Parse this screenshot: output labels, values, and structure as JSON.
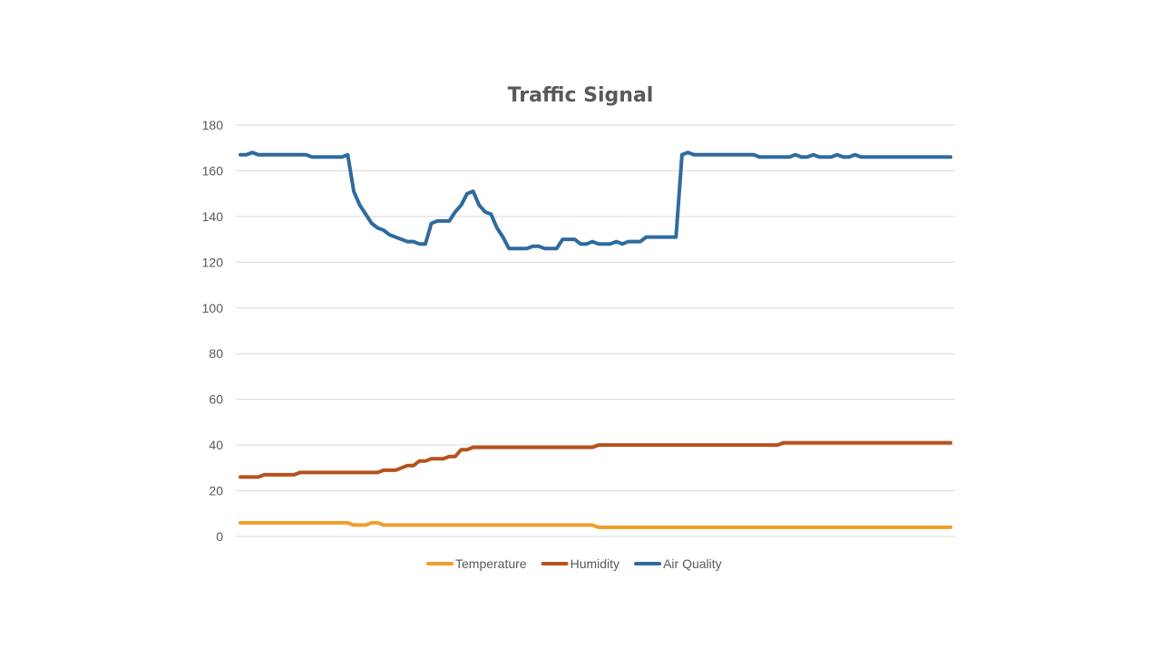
{
  "chart_data": {
    "type": "line",
    "title": "Traffic Signal",
    "xlabel": "",
    "ylabel": "",
    "ylim": [
      0,
      180
    ],
    "yticks": [
      0,
      20,
      40,
      60,
      80,
      100,
      120,
      140,
      160,
      180
    ],
    "grid": true,
    "legend_position": "bottom",
    "series": [
      {
        "name": "Temperature",
        "color": "#ed9f2b",
        "values": [
          6,
          6,
          6,
          6,
          6,
          6,
          6,
          6,
          6,
          6,
          6,
          6,
          6,
          6,
          6,
          6,
          6,
          6,
          6,
          5,
          5,
          5,
          6,
          6,
          5,
          5,
          5,
          5,
          5,
          5,
          5,
          5,
          5,
          5,
          5,
          5,
          5,
          5,
          5,
          5,
          5,
          5,
          5,
          5,
          5,
          5,
          5,
          5,
          5,
          5,
          5,
          5,
          5,
          5,
          5,
          5,
          5,
          5,
          5,
          5,
          4,
          4,
          4,
          4,
          4,
          4,
          4,
          4,
          4,
          4,
          4,
          4,
          4,
          4,
          4,
          4,
          4,
          4,
          4,
          4,
          4,
          4,
          4,
          4,
          4,
          4,
          4,
          4,
          4,
          4,
          4,
          4,
          4,
          4,
          4,
          4,
          4,
          4,
          4,
          4,
          4,
          4,
          4,
          4,
          4,
          4,
          4,
          4,
          4,
          4,
          4,
          4,
          4,
          4,
          4,
          4,
          4,
          4,
          4,
          4
        ]
      },
      {
        "name": "Humidity",
        "color": "#b5521e",
        "values": [
          26,
          26,
          26,
          26,
          27,
          27,
          27,
          27,
          27,
          27,
          28,
          28,
          28,
          28,
          28,
          28,
          28,
          28,
          28,
          28,
          28,
          28,
          28,
          28,
          29,
          29,
          29,
          30,
          31,
          31,
          33,
          33,
          34,
          34,
          34,
          35,
          35,
          38,
          38,
          39,
          39,
          39,
          39,
          39,
          39,
          39,
          39,
          39,
          39,
          39,
          39,
          39,
          39,
          39,
          39,
          39,
          39,
          39,
          39,
          39,
          40,
          40,
          40,
          40,
          40,
          40,
          40,
          40,
          40,
          40,
          40,
          40,
          40,
          40,
          40,
          40,
          40,
          40,
          40,
          40,
          40,
          40,
          40,
          40,
          40,
          40,
          40,
          40,
          40,
          40,
          40,
          41,
          41,
          41,
          41,
          41,
          41,
          41,
          41,
          41,
          41,
          41,
          41,
          41,
          41,
          41,
          41,
          41,
          41,
          41,
          41,
          41,
          41,
          41,
          41,
          41,
          41,
          41,
          41,
          41
        ]
      },
      {
        "name": "Air Quality",
        "color": "#2e6b9e",
        "values": [
          167,
          167,
          168,
          167,
          167,
          167,
          167,
          167,
          167,
          167,
          167,
          167,
          166,
          166,
          166,
          166,
          166,
          166,
          167,
          151,
          145,
          141,
          137,
          135,
          134,
          132,
          131,
          130,
          129,
          129,
          128,
          128,
          137,
          138,
          138,
          138,
          142,
          145,
          150,
          151,
          145,
          142,
          141,
          135,
          131,
          126,
          126,
          126,
          126,
          127,
          127,
          126,
          126,
          126,
          130,
          130,
          130,
          128,
          128,
          129,
          128,
          128,
          128,
          129,
          128,
          129,
          129,
          129,
          131,
          131,
          131,
          131,
          131,
          131,
          167,
          168,
          167,
          167,
          167,
          167,
          167,
          167,
          167,
          167,
          167,
          167,
          167,
          166,
          166,
          166,
          166,
          166,
          166,
          167,
          166,
          166,
          167,
          166,
          166,
          166,
          167,
          166,
          166,
          167,
          166,
          166,
          166,
          166,
          166,
          166,
          166,
          166,
          166,
          166,
          166,
          166,
          166,
          166,
          166,
          166
        ]
      }
    ]
  }
}
